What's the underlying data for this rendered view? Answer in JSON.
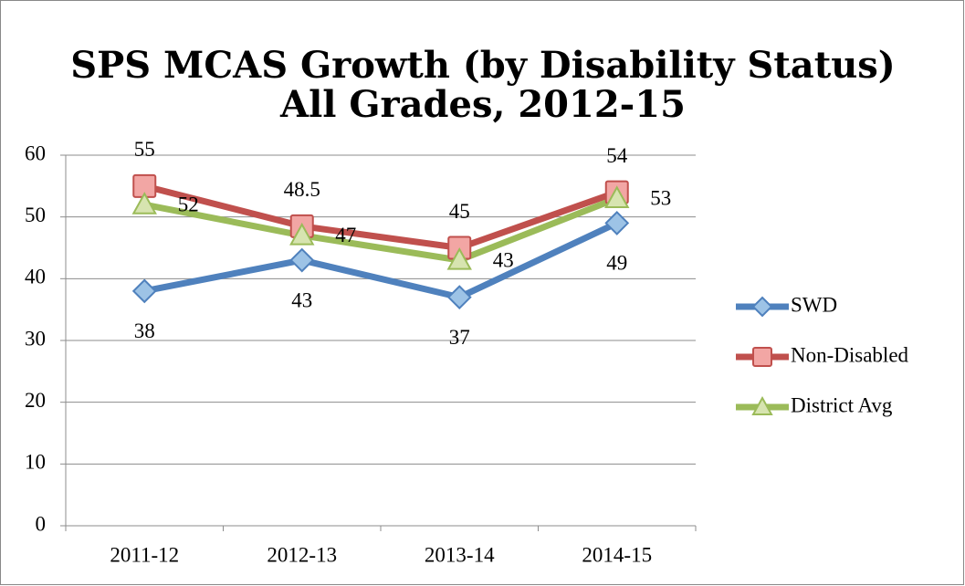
{
  "chart_data": {
    "type": "line",
    "title": "SPS MCAS Growth (by Disability Status)",
    "subtitle": "All Grades, 2012-15",
    "categories": [
      "2011-12",
      "2012-13",
      "2013-14",
      "2014-15"
    ],
    "series": [
      {
        "name": "SWD",
        "color": "#4f81bd",
        "marker": "diamond",
        "label_position": "below",
        "values": [
          38,
          43,
          37,
          49
        ]
      },
      {
        "name": "Non-Disabled",
        "color": "#c0504d",
        "marker": "square",
        "label_position": "above",
        "values": [
          55,
          48.5,
          45,
          54
        ]
      },
      {
        "name": "District Avg",
        "color": "#9bbb59",
        "marker": "triangle",
        "label_position": "right",
        "values": [
          52,
          47,
          43,
          53
        ]
      }
    ],
    "ylim": [
      0,
      60
    ],
    "yticks": [
      0,
      10,
      20,
      30,
      40,
      50,
      60
    ],
    "grid": true,
    "legend": "right"
  }
}
